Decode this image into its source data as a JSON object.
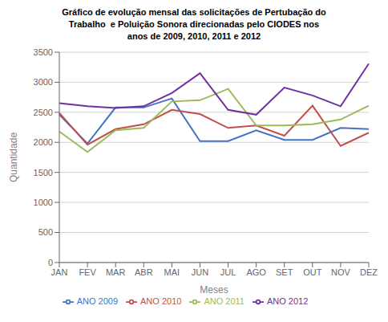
{
  "chart_data": {
    "type": "line",
    "title": "Gráfico de evolução mensal das solicitações de Pertubação do\nTrabalho  e Poluição Sonora direcionadas pelo CIODES nos\nanos de 2009, 2010, 2011 e 2012",
    "xlabel": "Meses",
    "ylabel": "Quantidade",
    "categories": [
      "JAN",
      "FEV",
      "MAR",
      "ABR",
      "MAI",
      "JUN",
      "JUL",
      "AGO",
      "SET",
      "OUT",
      "NOV",
      "DEZ"
    ],
    "series": [
      {
        "name": "ANO 2009",
        "color": "#4472c4",
        "values": [
          2460,
          1980,
          2580,
          2580,
          2730,
          2020,
          2020,
          2200,
          2040,
          2040,
          2240,
          2220
        ]
      },
      {
        "name": "ANO 2010",
        "color": "#c0504d",
        "values": [
          2490,
          1960,
          2220,
          2300,
          2540,
          2470,
          2240,
          2280,
          2110,
          2610,
          1940,
          2160
        ]
      },
      {
        "name": "ANO 2011",
        "color": "#9bbb59",
        "values": [
          2180,
          1840,
          2200,
          2240,
          2680,
          2700,
          2890,
          2280,
          2280,
          2300,
          2380,
          2610
        ]
      },
      {
        "name": "ANO 2012",
        "color": "#7030a0",
        "values": [
          2650,
          2600,
          2570,
          2600,
          2820,
          3150,
          2540,
          2460,
          2910,
          2780,
          2600,
          3310
        ]
      }
    ],
    "ylim": [
      0,
      3500
    ],
    "yticks": [
      0,
      500,
      1000,
      1500,
      2000,
      2500,
      3000,
      3500
    ],
    "grid": true,
    "legend": "bottom"
  }
}
